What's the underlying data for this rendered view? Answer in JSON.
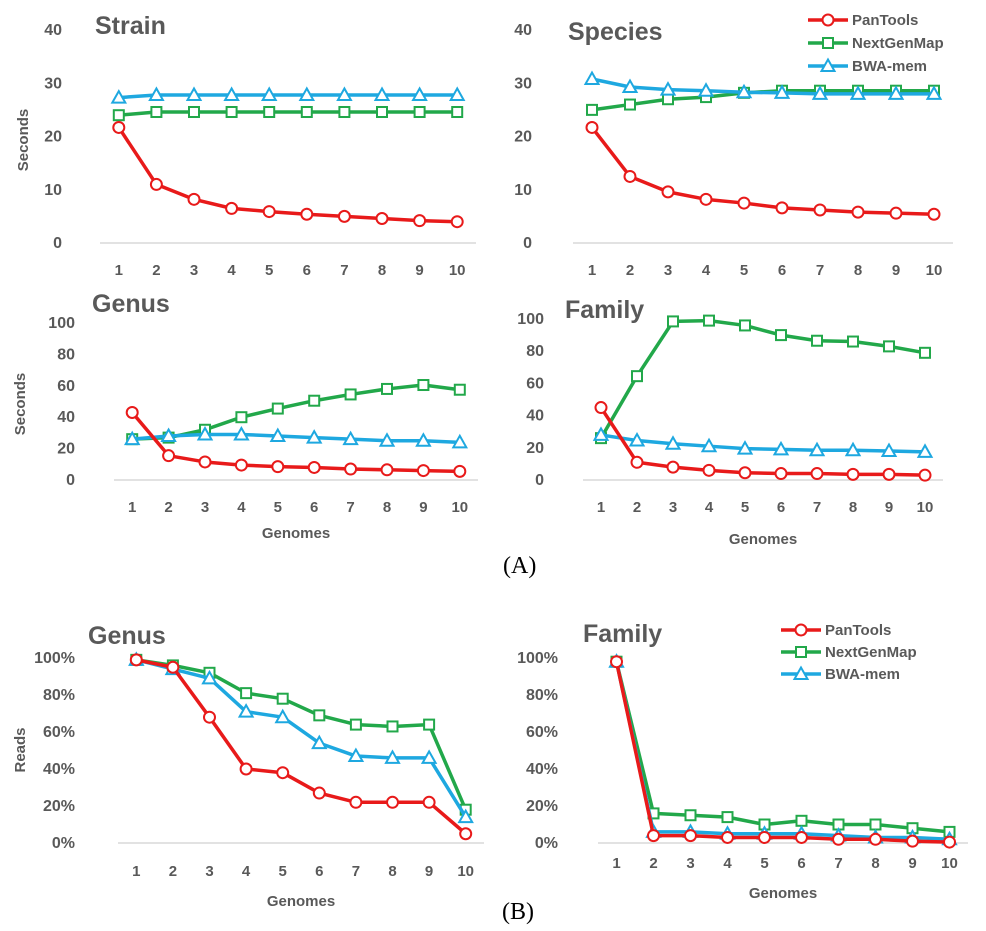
{
  "figure": {
    "caption_a": "(A)",
    "caption_b": "(B)"
  },
  "legend_entries": [
    "PanTools",
    "NextGenMap",
    "BWA-mem"
  ],
  "colors": {
    "PanTools": "#e81a1a",
    "NextGenMap": "#22a84a",
    "BWA-mem": "#1ea8e0",
    "axis": "#d9d9d9",
    "text": "#595959"
  },
  "chart_data": [
    {
      "type": "line",
      "title": "Strain",
      "xlabel": "",
      "ylabel": "Seconds",
      "x": [
        1,
        2,
        3,
        4,
        5,
        6,
        7,
        8,
        9,
        10
      ],
      "ylim": [
        0,
        40
      ],
      "yticks": [
        0,
        10,
        20,
        30,
        40
      ],
      "legend": "top-right",
      "grid": false,
      "series": [
        {
          "name": "PanTools",
          "marker": "circle",
          "values": [
            21.7,
            11,
            8.2,
            6.5,
            5.9,
            5.4,
            5,
            4.6,
            4.2,
            4
          ]
        },
        {
          "name": "NextGenMap",
          "marker": "square",
          "values": [
            24,
            24.6,
            24.6,
            24.6,
            24.6,
            24.6,
            24.6,
            24.6,
            24.6,
            24.6
          ]
        },
        {
          "name": "BWA-mem",
          "marker": "triangle",
          "values": [
            27.3,
            27.8,
            27.8,
            27.8,
            27.8,
            27.8,
            27.8,
            27.8,
            27.8,
            27.8
          ]
        }
      ]
    },
    {
      "type": "line",
      "title": "Species",
      "xlabel": "",
      "ylabel": "",
      "x": [
        1,
        2,
        3,
        4,
        5,
        6,
        7,
        8,
        9,
        10
      ],
      "ylim": [
        0,
        40
      ],
      "yticks": [
        0,
        10,
        20,
        30,
        40
      ],
      "legend": "top-right",
      "grid": false,
      "series": [
        {
          "name": "PanTools",
          "marker": "circle",
          "values": [
            21.7,
            12.5,
            9.6,
            8.2,
            7.5,
            6.6,
            6.2,
            5.8,
            5.6,
            5.4
          ]
        },
        {
          "name": "NextGenMap",
          "marker": "square",
          "values": [
            25,
            26,
            27,
            27.4,
            28.2,
            28.6,
            28.6,
            28.6,
            28.6,
            28.6
          ]
        },
        {
          "name": "BWA-mem",
          "marker": "triangle",
          "values": [
            30.8,
            29.3,
            28.8,
            28.6,
            28.3,
            28.2,
            28,
            28,
            28,
            28
          ]
        }
      ]
    },
    {
      "type": "line",
      "title": "Genus",
      "xlabel": "Genomes",
      "ylabel": "Seconds",
      "x": [
        1,
        2,
        3,
        4,
        5,
        6,
        7,
        8,
        9,
        10
      ],
      "ylim": [
        0,
        100
      ],
      "yticks": [
        0,
        20,
        40,
        60,
        80,
        100
      ],
      "grid": false,
      "series": [
        {
          "name": "PanTools",
          "marker": "circle",
          "values": [
            43,
            15.5,
            11.5,
            9.5,
            8.5,
            8,
            7,
            6.5,
            6,
            5.5
          ]
        },
        {
          "name": "NextGenMap",
          "marker": "square",
          "values": [
            26,
            27,
            32,
            40,
            45.5,
            50.5,
            54.5,
            58,
            60.5,
            57.5
          ]
        },
        {
          "name": "BWA-mem",
          "marker": "triangle",
          "values": [
            26,
            28,
            29,
            29,
            28,
            27,
            26,
            25,
            25,
            24
          ]
        }
      ]
    },
    {
      "type": "line",
      "title": "Family",
      "xlabel": "Genomes",
      "ylabel": "",
      "x": [
        1,
        2,
        3,
        4,
        5,
        6,
        7,
        8,
        9,
        10
      ],
      "ylim": [
        0,
        100
      ],
      "yticks": [
        0,
        20,
        40,
        60,
        80,
        100
      ],
      "grid": false,
      "series": [
        {
          "name": "PanTools",
          "marker": "circle",
          "values": [
            45,
            11,
            8,
            6,
            4.5,
            4,
            4,
            3.5,
            3.5,
            3
          ]
        },
        {
          "name": "NextGenMap",
          "marker": "square",
          "values": [
            26,
            64.5,
            98.5,
            99,
            96,
            90,
            86.5,
            86,
            83,
            79
          ]
        },
        {
          "name": "BWA-mem",
          "marker": "triangle",
          "values": [
            28,
            24.5,
            22.5,
            21,
            19.5,
            19,
            18.5,
            18.5,
            18,
            17.5
          ]
        }
      ]
    },
    {
      "type": "line",
      "title": "Genus",
      "xlabel": "Genomes",
      "ylabel": "Reads",
      "x": [
        1,
        2,
        3,
        4,
        5,
        6,
        7,
        8,
        9,
        10
      ],
      "ylim": [
        0,
        100
      ],
      "yticks": [
        0,
        20,
        40,
        60,
        80,
        100
      ],
      "yticklabels": [
        "0%",
        "20%",
        "40%",
        "60%",
        "80%",
        "100%"
      ],
      "grid": false,
      "series": [
        {
          "name": "PanTools",
          "marker": "circle",
          "values": [
            99,
            95,
            68,
            40,
            38,
            27,
            22,
            22,
            22,
            5
          ]
        },
        {
          "name": "NextGenMap",
          "marker": "square",
          "values": [
            99,
            96,
            92,
            81,
            78,
            69,
            64,
            63,
            64,
            18
          ]
        },
        {
          "name": "BWA-mem",
          "marker": "triangle",
          "values": [
            99,
            94,
            89,
            71,
            68,
            54,
            47,
            46,
            46,
            14
          ]
        }
      ]
    },
    {
      "type": "line",
      "title": "Family",
      "xlabel": "Genomes",
      "ylabel": "",
      "x": [
        1,
        2,
        3,
        4,
        5,
        6,
        7,
        8,
        9,
        10
      ],
      "ylim": [
        0,
        100
      ],
      "yticks": [
        0,
        20,
        40,
        60,
        80,
        100
      ],
      "yticklabels": [
        "0%",
        "20%",
        "40%",
        "60%",
        "80%",
        "100%"
      ],
      "legend": "top-right",
      "grid": false,
      "series": [
        {
          "name": "PanTools",
          "marker": "circle",
          "values": [
            98,
            4,
            4,
            3,
            3,
            3,
            2,
            2,
            1,
            0.5
          ]
        },
        {
          "name": "NextGenMap",
          "marker": "square",
          "values": [
            98,
            16,
            15,
            14,
            10,
            12,
            10,
            10,
            8,
            6
          ]
        },
        {
          "name": "BWA-mem",
          "marker": "triangle",
          "values": [
            98,
            6,
            6,
            5,
            5,
            5,
            4,
            3,
            3,
            2
          ]
        }
      ]
    }
  ]
}
